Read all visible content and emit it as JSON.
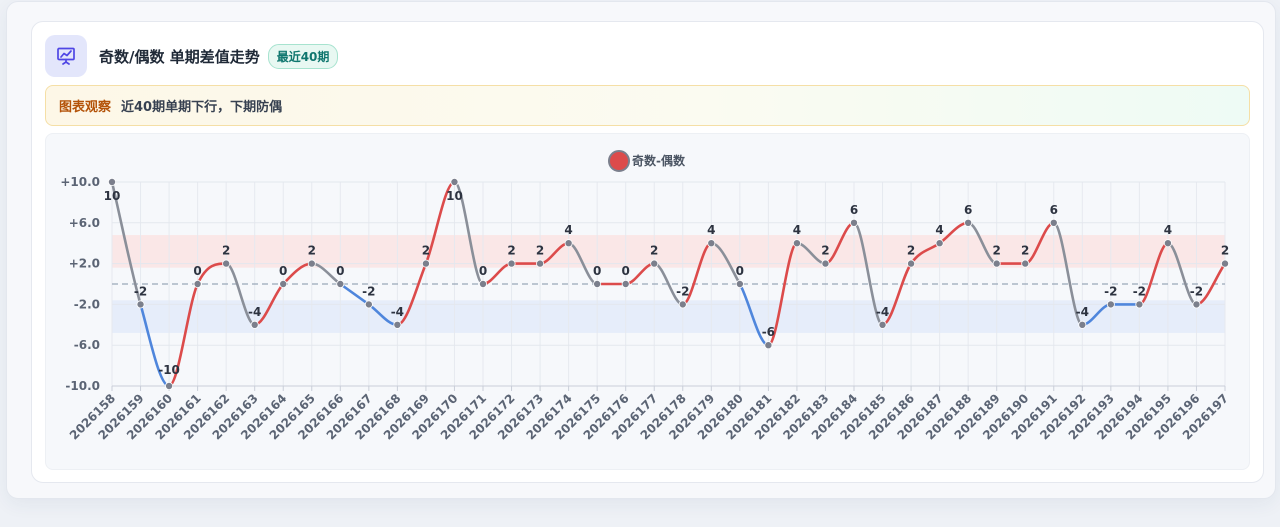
{
  "header": {
    "title": "奇数/偶数 单期差值走势",
    "badge": "最近40期",
    "icon": "chart-presentation-icon"
  },
  "notice": {
    "label": "图表观察",
    "text": "近40期单期下行，下期防偶"
  },
  "colors": {
    "positive": "#dc4b4b",
    "negative": "#4f86dc",
    "neutral": "#8a8f99",
    "band_positive": "#fbe4e4",
    "band_negative": "#e4ebfa",
    "point": "#7b7f8c",
    "accent": "#4f46e5"
  },
  "chart_data": {
    "type": "line",
    "legend": {
      "label": "奇数-偶数",
      "color": "#dc4b4b",
      "position": "top"
    },
    "categories": [
      "2026158",
      "2026159",
      "2026160",
      "2026161",
      "2026162",
      "2026163",
      "2026164",
      "2026165",
      "2026166",
      "2026167",
      "2026168",
      "2026169",
      "2026170",
      "2026171",
      "2026172",
      "2026173",
      "2026174",
      "2026175",
      "2026176",
      "2026177",
      "2026178",
      "2026179",
      "2026180",
      "2026181",
      "2026182",
      "2026183",
      "2026184",
      "2026185",
      "2026186",
      "2026187",
      "2026188",
      "2026189",
      "2026190",
      "2026191",
      "2026192",
      "2026193",
      "2026194",
      "2026195",
      "2026196",
      "2026197"
    ],
    "series": [
      {
        "name": "奇数-偶数",
        "values": [
          10,
          -2,
          -10,
          0,
          2,
          -4,
          0,
          2,
          0,
          -2,
          -4,
          2,
          10,
          0,
          2,
          2,
          4,
          0,
          0,
          2,
          -2,
          4,
          0,
          -6,
          4,
          2,
          6,
          -4,
          2,
          4,
          6,
          2,
          2,
          6,
          -4,
          -2,
          -2,
          4,
          -2,
          2
        ]
      }
    ],
    "data_labels": [
      "10",
      "-2",
      "-10",
      "0",
      "2",
      "-4",
      "0",
      "2",
      "0",
      "-2",
      "-4",
      "2",
      "10",
      "0",
      "2",
      "2",
      "4",
      "0",
      "0",
      "2",
      "-2",
      "4",
      "0",
      "-6",
      "4",
      "2",
      "6",
      "-4",
      "2",
      "4",
      "6",
      "2",
      "2",
      "6",
      "-4",
      "-2",
      "-2",
      "4",
      "-2",
      "2"
    ],
    "y_ticks": [
      10,
      6,
      2,
      -2,
      -6,
      -10
    ],
    "y_tick_labels": [
      "+10.0",
      "+6.0",
      "+2.0",
      "-2.0",
      "-6.0",
      "-10.0"
    ],
    "ylim": [
      -10,
      10
    ],
    "bands": [
      {
        "from": 1.6,
        "to": 4.8,
        "kind": "positive"
      },
      {
        "from": -4.8,
        "to": -1.6,
        "kind": "negative"
      }
    ],
    "reference_line": 0,
    "grid": true
  }
}
